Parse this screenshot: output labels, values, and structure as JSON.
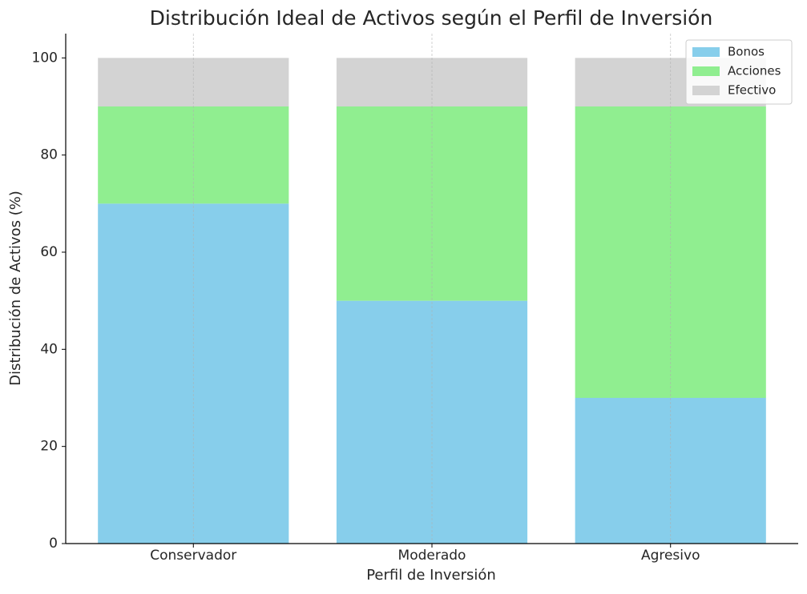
{
  "chart_data": {
    "type": "stacked-bar",
    "title": "Distribución Ideal de Activos según el Perfil de Inversión",
    "x_label": "Perfil de Inversión",
    "y_label": "Distribución de Activos (%)",
    "categories": [
      "Conservador",
      "Moderado",
      "Agresivo"
    ],
    "series": [
      {
        "name": "Bonos",
        "color": "#87ceeb",
        "values": [
          70,
          50,
          30
        ]
      },
      {
        "name": "Acciones",
        "color": "#90ee90",
        "values": [
          20,
          40,
          60
        ]
      },
      {
        "name": "Efectivo",
        "color": "#d3d3d3",
        "values": [
          10,
          10,
          10
        ]
      }
    ],
    "ylim": [
      0,
      105
    ],
    "yticks": [
      0,
      20,
      40,
      60,
      80,
      100
    ],
    "x_grid": true,
    "legend": "upper right"
  }
}
